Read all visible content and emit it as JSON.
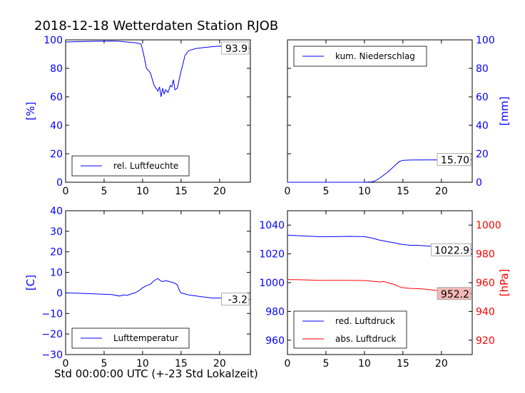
{
  "title": "2018-12-18 Wetterdaten Station RJOB",
  "xlabel": "Std 00:00:00 UTC (+-23 Std Lokalzeit)",
  "colors": {
    "blue": "#0000ff",
    "red": "#ff0000",
    "label_bg_red": "#f4b8b8"
  },
  "chart_data": [
    {
      "type": "line",
      "xlim": [
        0,
        24
      ],
      "ylim": [
        0,
        100
      ],
      "xticks": [
        "0",
        "5",
        "10",
        "15",
        "20"
      ],
      "yticks": [
        "0",
        "20",
        "40",
        "60",
        "80",
        "100"
      ],
      "ylabel": "[%]",
      "ylabel_side": "left",
      "legend_position": "lower-left",
      "value_label": "93.9",
      "series": [
        {
          "name": "rel. Luftfeuchte",
          "color": "#0000ff",
          "x": [
            0,
            2,
            4,
            6,
            7,
            8,
            9,
            9.5,
            9.8,
            10,
            10.2,
            10.5,
            11,
            11.5,
            12,
            12.2,
            12.4,
            12.6,
            12.8,
            13,
            13.3,
            13.6,
            13.8,
            14,
            14.2,
            14.5,
            15,
            15.5,
            16,
            17,
            18,
            19,
            20,
            21,
            22,
            23,
            24
          ],
          "y": [
            98.5,
            98.8,
            99,
            99.2,
            99,
            98.5,
            98,
            97.5,
            97,
            93,
            88,
            80,
            77,
            68,
            64,
            67,
            60,
            66,
            62,
            65,
            63,
            68,
            67,
            72,
            65,
            66,
            78,
            89,
            92.5,
            94,
            94.6,
            95.2,
            95.6,
            95.4,
            95.8,
            95,
            94
          ]
        }
      ]
    },
    {
      "type": "line",
      "xlim": [
        0,
        24
      ],
      "ylim": [
        0,
        100
      ],
      "xticks": [
        "0",
        "5",
        "10",
        "15",
        "20"
      ],
      "yticks": [
        "0",
        "20",
        "40",
        "60",
        "80",
        "100"
      ],
      "ylabel": "[mm]",
      "ylabel_side": "right",
      "legend_position": "top-left",
      "value_label": "15.70",
      "series": [
        {
          "name": "kum. Niederschlag",
          "color": "#0000ff",
          "x": [
            0,
            10,
            11,
            11.5,
            12,
            12.5,
            13,
            13.5,
            14,
            14.5,
            15,
            16,
            18,
            20,
            22,
            24
          ],
          "y": [
            0,
            0,
            0.3,
            1.2,
            3,
            5,
            7,
            9.5,
            12,
            14.5,
            15.4,
            15.6,
            15.7,
            15.7,
            15.7,
            15.7
          ]
        }
      ]
    },
    {
      "type": "line",
      "xlim": [
        0,
        24
      ],
      "ylim": [
        -30,
        40
      ],
      "xticks": [
        "0",
        "5",
        "10",
        "15",
        "20"
      ],
      "yticks": [
        "−30",
        "−20",
        "−10",
        "0",
        "10",
        "20",
        "30",
        "40"
      ],
      "ylabel": "[C]",
      "ylabel_side": "left",
      "legend_position": "lower-left",
      "value_label": "-3.2",
      "series": [
        {
          "name": "Lufttemperatur",
          "color": "#0000ff",
          "x": [
            0,
            2,
            4,
            6,
            7,
            7.5,
            8,
            8.5,
            9,
            9.5,
            10,
            10.5,
            11,
            11.5,
            12,
            12.3,
            12.6,
            13,
            13.5,
            14,
            14.5,
            14.8,
            15,
            15.5,
            16,
            17,
            18,
            19,
            20,
            21,
            22,
            23,
            24
          ],
          "y": [
            0,
            -0.2,
            -0.5,
            -0.8,
            -1.5,
            -1,
            -1.2,
            -0.5,
            0,
            1,
            2.5,
            3.5,
            4.2,
            6,
            7,
            6,
            5.5,
            6,
            5.5,
            5,
            4,
            1,
            0,
            -0.5,
            -1,
            -1.5,
            -2,
            -2.5,
            -2.5,
            -3,
            -3,
            -3.1,
            -3.2
          ]
        }
      ]
    },
    {
      "type": "line",
      "xlim": [
        0,
        24
      ],
      "ylim_left": [
        950,
        1050
      ],
      "ylim_right": [
        910,
        1010
      ],
      "xticks": [
        "0",
        "5",
        "10",
        "15",
        "20"
      ],
      "yticks_left": [
        "960",
        "980",
        "1000",
        "1020",
        "1040"
      ],
      "yticks_right": [
        "920",
        "940",
        "960",
        "980",
        "1000"
      ],
      "ylabel": "[hPa]",
      "ylabel_side": "right",
      "legend_position": "lower-left",
      "series": [
        {
          "name": "red. Luftdruck",
          "color": "#0000ff",
          "axis": "left",
          "value_label": "1022.9",
          "x": [
            0,
            2,
            4,
            6,
            8,
            10,
            11,
            12,
            13,
            14,
            15,
            16,
            17,
            18,
            19,
            20,
            21,
            22,
            23,
            24
          ],
          "y": [
            1033,
            1032.5,
            1032,
            1032,
            1032.2,
            1032,
            1031,
            1029.5,
            1028.5,
            1027.5,
            1026.5,
            1026,
            1026,
            1025.5,
            1025.2,
            1025,
            1024.8,
            1024.5,
            1023.5,
            1023
          ]
        },
        {
          "name": "abs. Luftdruck",
          "color": "#ff0000",
          "axis": "right",
          "value_label": "952.2",
          "x": [
            0,
            2,
            4,
            6,
            8,
            10,
            11,
            12,
            12.5,
            13,
            14,
            14.5,
            15,
            16,
            17,
            18,
            19,
            20,
            21,
            22,
            23,
            24
          ],
          "y": [
            962.2,
            962,
            961.6,
            961.6,
            961.6,
            961.5,
            961,
            960.5,
            960.8,
            960,
            958.5,
            957.2,
            956.5,
            956,
            955.8,
            955.4,
            954.8,
            954.3,
            954,
            953.6,
            953,
            952.2
          ]
        }
      ]
    }
  ]
}
